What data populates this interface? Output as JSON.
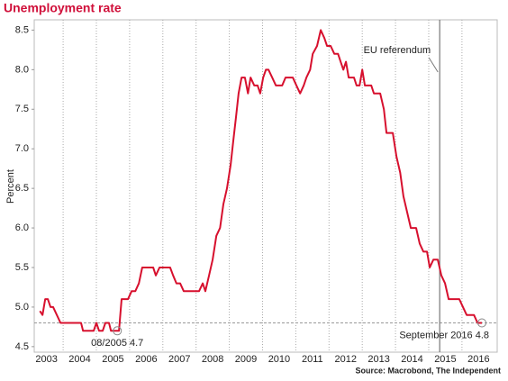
{
  "chart_data": {
    "type": "line",
    "title": "Unemployment rate",
    "y_label": "Percent",
    "source": "Source: Macrobond, The Independent",
    "x": [
      2003.3,
      2003.38,
      2003.46,
      2003.54,
      2003.62,
      2003.7,
      2003.81,
      2003.92,
      2004.54,
      2004.6,
      2004.92,
      2005.0,
      2005.08,
      2005.19,
      2005.27,
      2005.38,
      2005.44,
      2005.68,
      2005.76,
      2005.95,
      2006.06,
      2006.17,
      2006.28,
      2006.38,
      2006.71,
      2006.79,
      2006.9,
      2007.22,
      2007.31,
      2007.41,
      2007.52,
      2007.63,
      2008.09,
      2008.2,
      2008.28,
      2008.39,
      2008.5,
      2008.61,
      2008.72,
      2008.82,
      2008.93,
      2009.04,
      2009.12,
      2009.2,
      2009.28,
      2009.37,
      2009.47,
      2009.56,
      2009.64,
      2009.75,
      2009.85,
      2009.93,
      2010.02,
      2010.1,
      2010.18,
      2010.29,
      2010.4,
      2010.59,
      2010.69,
      2010.91,
      2011.02,
      2011.13,
      2011.24,
      2011.32,
      2011.43,
      2011.51,
      2011.64,
      2011.75,
      2011.86,
      2011.94,
      2012.05,
      2012.16,
      2012.27,
      2012.35,
      2012.43,
      2012.51,
      2012.59,
      2012.75,
      2012.83,
      2012.92,
      2013.0,
      2013.08,
      2013.27,
      2013.35,
      2013.54,
      2013.65,
      2013.73,
      2013.92,
      2014.03,
      2014.14,
      2014.24,
      2014.35,
      2014.46,
      2014.62,
      2014.73,
      2014.84,
      2014.95,
      2015.03,
      2015.14,
      2015.27,
      2015.38,
      2015.49,
      2015.6,
      2015.92,
      2016.03,
      2016.14,
      2016.36,
      2016.47,
      2016.6
    ],
    "series": [
      {
        "name": "Unemployment rate",
        "color": "#d7102e",
        "values": [
          4.95,
          4.9,
          5.1,
          5.1,
          5.0,
          5.0,
          4.9,
          4.8,
          4.8,
          4.7,
          4.7,
          4.8,
          4.7,
          4.7,
          4.8,
          4.8,
          4.7,
          4.7,
          5.1,
          5.1,
          5.2,
          5.2,
          5.3,
          5.5,
          5.5,
          5.4,
          5.5,
          5.5,
          5.4,
          5.3,
          5.3,
          5.2,
          5.2,
          5.3,
          5.2,
          5.4,
          5.6,
          5.9,
          6.0,
          6.3,
          6.5,
          6.8,
          7.1,
          7.4,
          7.7,
          7.9,
          7.9,
          7.7,
          7.9,
          7.8,
          7.8,
          7.7,
          7.9,
          8.0,
          8.0,
          7.9,
          7.8,
          7.8,
          7.9,
          7.9,
          7.8,
          7.7,
          7.8,
          7.9,
          8.0,
          8.2,
          8.3,
          8.5,
          8.4,
          8.3,
          8.3,
          8.2,
          8.2,
          8.1,
          8.0,
          8.1,
          7.9,
          7.9,
          7.8,
          7.8,
          8.0,
          7.8,
          7.8,
          7.7,
          7.7,
          7.5,
          7.2,
          7.2,
          6.9,
          6.7,
          6.4,
          6.2,
          6.0,
          6.0,
          5.8,
          5.7,
          5.7,
          5.5,
          5.6,
          5.6,
          5.4,
          5.3,
          5.1,
          5.1,
          5.0,
          4.9,
          4.9,
          4.8,
          4.8
        ]
      }
    ],
    "xlim": [
      2003.13,
      2017.06
    ],
    "ylim": [
      4.43,
      8.63
    ],
    "xticks": [
      2003,
      2004,
      2005,
      2006,
      2007,
      2008,
      2009,
      2010,
      2011,
      2012,
      2013,
      2014,
      2015,
      2016
    ],
    "yticks": [
      4.5,
      {
        "value": 5,
        "label": "5.0"
      },
      5.5,
      {
        "value": 6,
        "label": "6.0"
      },
      6.5,
      {
        "value": 7,
        "label": "7.0"
      },
      7.5,
      {
        "value": 8,
        "label": "8.0"
      },
      8.5
    ],
    "grid": true,
    "reference_line": 4.8,
    "vertical_marker": {
      "x": 2015.33,
      "label": "EU referendum"
    },
    "annotations": [
      {
        "text": "08/2005 4.7",
        "x": 2005.63,
        "y": 4.7
      },
      {
        "text": "September 2016 4.8",
        "x": 2016.6,
        "y": 4.8
      }
    ]
  }
}
